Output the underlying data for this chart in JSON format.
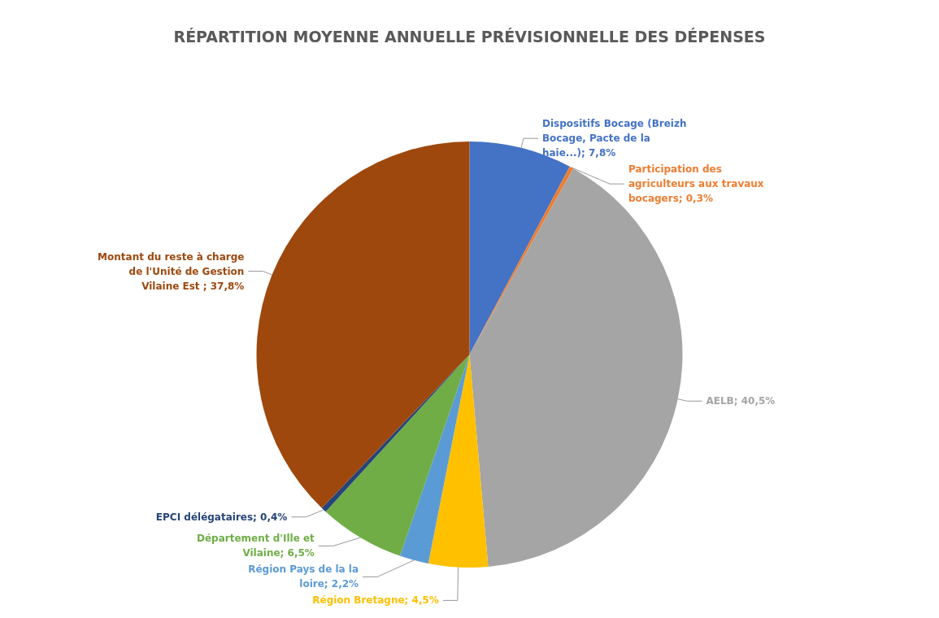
{
  "chart_data": {
    "type": "pie",
    "title": "RÉPARTITION MOYENNE ANNUELLE PRÉVISIONNELLE DES DÉPENSES",
    "categories": [
      "Dispositifs Bocage (Breizh Bocage, Pacte de la haie...)",
      "Participation des agriculteurs aux travaux bocagers",
      "AELB",
      "Région Bretagne",
      "Région Pays de la la loire",
      "Département d'Ille et Vilaine",
      "EPCI délégataires",
      "Montant du reste à charge de l'Unité de Gestion Vilaine Est "
    ],
    "values": [
      7.8,
      0.3,
      40.5,
      4.5,
      2.2,
      6.5,
      0.4,
      37.8
    ],
    "value_labels": [
      "7,8%",
      "0,3%",
      "40,5%",
      "4,5%",
      "2,2%",
      "6,5%",
      "0,4%",
      "37,8%"
    ],
    "colors": [
      "#4472c4",
      "#ed7d31",
      "#a5a5a5",
      "#ffc000",
      "#5b9bd5",
      "#70ad47",
      "#264478",
      "#9e480e"
    ],
    "legend": false
  }
}
